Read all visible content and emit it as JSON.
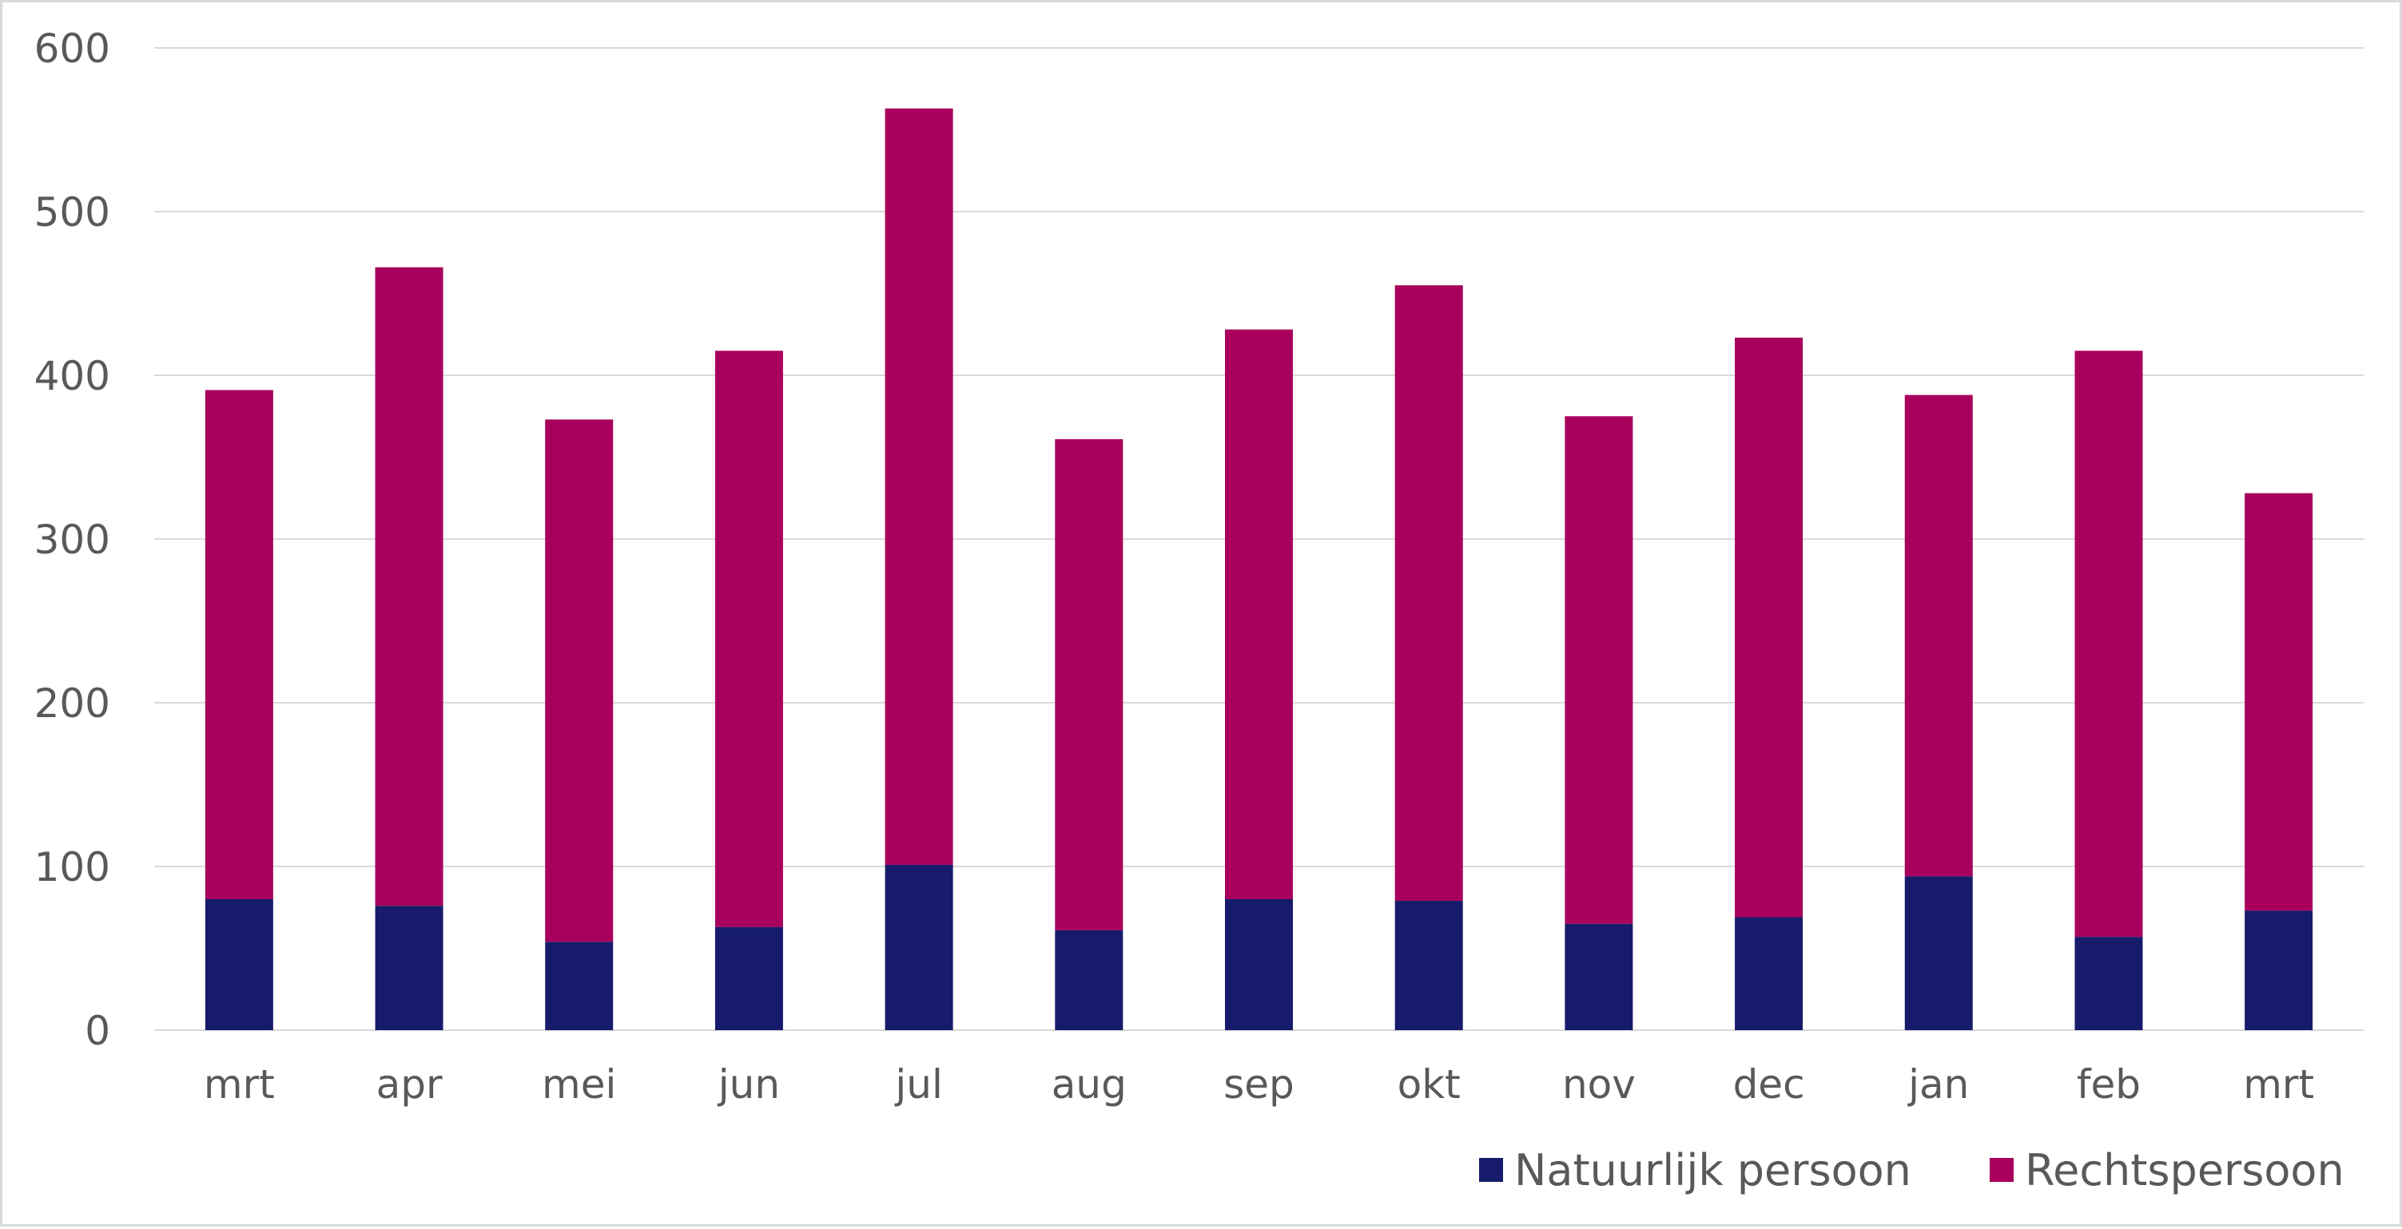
{
  "chart_data": {
    "type": "bar",
    "stacked": true,
    "categories": [
      "mrt",
      "apr",
      "mei",
      "jun",
      "jul",
      "aug",
      "sep",
      "okt",
      "nov",
      "dec",
      "jan",
      "feb",
      "mrt"
    ],
    "series": [
      {
        "name": "Natuurlijk persoon",
        "color": "#161c6b",
        "values": [
          80,
          76,
          54,
          63,
          101,
          61,
          80,
          79,
          65,
          69,
          94,
          57,
          73
        ]
      },
      {
        "name": "Rechtspersoon",
        "color": "#a8005c",
        "values": [
          311,
          390,
          319,
          352,
          462,
          300,
          348,
          376,
          310,
          354,
          294,
          358,
          255
        ]
      }
    ],
    "title": "",
    "xlabel": "",
    "ylabel": "",
    "ylim": [
      0,
      600
    ],
    "yticks": [
      0,
      100,
      200,
      300,
      400,
      500,
      600
    ],
    "grid": true,
    "legend": "bottom-right",
    "colors": {
      "grid": "#d9d9d9",
      "text": "#595959",
      "frame": "#d9d9d9"
    }
  }
}
